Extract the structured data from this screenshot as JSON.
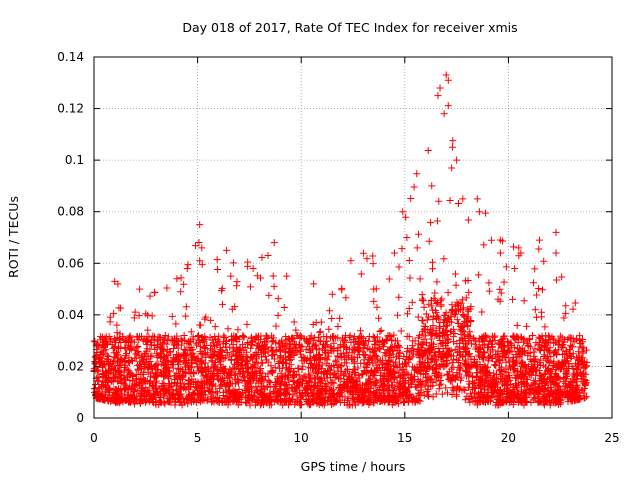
{
  "chart_data": {
    "type": "scatter",
    "title": "Day 018 of 2017, Rate Of TEC Index for receiver xmis",
    "xlabel": "GPS time / hours",
    "ylabel": "ROTI / TECUs",
    "xlim": [
      0,
      25
    ],
    "ylim": [
      0,
      0.14
    ],
    "x_ticks": [
      "0",
      "5",
      "10",
      "15",
      "20",
      "25"
    ],
    "y_ticks": [
      "0",
      "0.02",
      "0.04",
      "0.06",
      "0.08",
      "0.1",
      "0.12",
      "0.14"
    ],
    "grid": true,
    "marker": "+",
    "color": "#ff0000",
    "description_of_density": "dense cloud of ROTI samples, mostly 0.005-0.035 TECU/min from 0 to ~23.8 h",
    "series": [
      {
        "values_note": "sample envelope (x in hours, y in TECU/min) read from plot",
        "envelope": [
          {
            "x": 0.0,
            "lo": 0.008,
            "hi": 0.03
          },
          {
            "x": 1.0,
            "lo": 0.006,
            "hi": 0.053
          },
          {
            "x": 2.2,
            "lo": 0.005,
            "hi": 0.05
          },
          {
            "x": 4.0,
            "lo": 0.005,
            "hi": 0.055
          },
          {
            "x": 5.1,
            "lo": 0.005,
            "hi": 0.075
          },
          {
            "x": 6.5,
            "lo": 0.005,
            "hi": 0.065
          },
          {
            "x": 8.7,
            "lo": 0.005,
            "hi": 0.068
          },
          {
            "x": 10.0,
            "lo": 0.005,
            "hi": 0.05
          },
          {
            "x": 12.4,
            "lo": 0.005,
            "hi": 0.061
          },
          {
            "x": 14.9,
            "lo": 0.005,
            "hi": 0.08
          },
          {
            "x": 16.5,
            "lo": 0.008,
            "hi": 0.13
          },
          {
            "x": 17.0,
            "lo": 0.01,
            "hi": 0.133
          },
          {
            "x": 17.5,
            "lo": 0.008,
            "hi": 0.1
          },
          {
            "x": 18.5,
            "lo": 0.005,
            "hi": 0.085
          },
          {
            "x": 20.5,
            "lo": 0.005,
            "hi": 0.066
          },
          {
            "x": 21.5,
            "lo": 0.005,
            "hi": 0.069
          },
          {
            "x": 22.3,
            "lo": 0.005,
            "hi": 0.072
          },
          {
            "x": 23.8,
            "lo": 0.008,
            "hi": 0.035
          }
        ],
        "outliers": [
          {
            "x": 1.0,
            "y": 0.053
          },
          {
            "x": 2.2,
            "y": 0.05
          },
          {
            "x": 4.0,
            "y": 0.054
          },
          {
            "x": 4.5,
            "y": 0.058
          },
          {
            "x": 5.1,
            "y": 0.075
          },
          {
            "x": 5.2,
            "y": 0.066
          },
          {
            "x": 5.1,
            "y": 0.061
          },
          {
            "x": 6.4,
            "y": 0.065
          },
          {
            "x": 6.6,
            "y": 0.055
          },
          {
            "x": 8.4,
            "y": 0.063
          },
          {
            "x": 8.7,
            "y": 0.068
          },
          {
            "x": 9.3,
            "y": 0.055
          },
          {
            "x": 10.6,
            "y": 0.052
          },
          {
            "x": 11.5,
            "y": 0.048
          },
          {
            "x": 12.4,
            "y": 0.061
          },
          {
            "x": 13.5,
            "y": 0.05
          },
          {
            "x": 14.5,
            "y": 0.064
          },
          {
            "x": 14.9,
            "y": 0.08
          },
          {
            "x": 15.1,
            "y": 0.07
          },
          {
            "x": 15.6,
            "y": 0.066
          },
          {
            "x": 16.3,
            "y": 0.09
          },
          {
            "x": 16.6,
            "y": 0.125
          },
          {
            "x": 16.7,
            "y": 0.128
          },
          {
            "x": 17.0,
            "y": 0.133
          },
          {
            "x": 17.1,
            "y": 0.131
          },
          {
            "x": 16.9,
            "y": 0.118
          },
          {
            "x": 17.3,
            "y": 0.105
          },
          {
            "x": 17.5,
            "y": 0.1
          },
          {
            "x": 17.8,
            "y": 0.085
          },
          {
            "x": 18.5,
            "y": 0.085
          },
          {
            "x": 18.6,
            "y": 0.08
          },
          {
            "x": 20.5,
            "y": 0.066
          },
          {
            "x": 20.6,
            "y": 0.064
          },
          {
            "x": 20.3,
            "y": 0.058
          },
          {
            "x": 20.2,
            "y": 0.046
          },
          {
            "x": 21.5,
            "y": 0.069
          },
          {
            "x": 22.3,
            "y": 0.072
          },
          {
            "x": 22.3,
            "y": 0.064
          },
          {
            "x": 21.3,
            "y": 0.042
          },
          {
            "x": 21.6,
            "y": 0.041
          }
        ]
      }
    ]
  }
}
